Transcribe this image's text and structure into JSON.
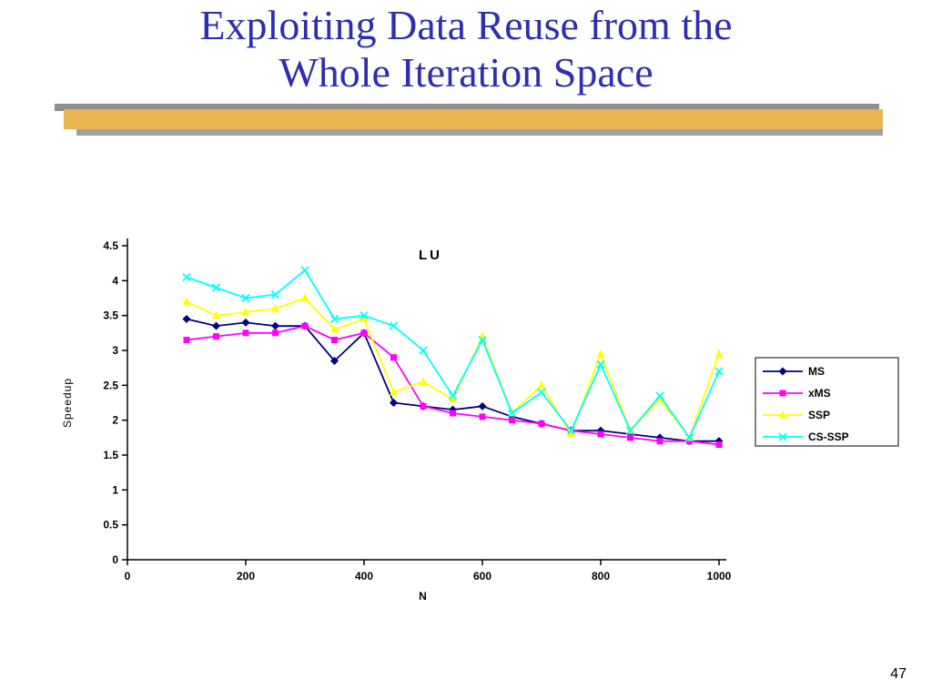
{
  "slide": {
    "title_line1": "Exploiting Data Reuse from the",
    "title_line2": "Whole Iteration Space",
    "page_number": "47",
    "title_color": "#2E2EB0",
    "divider_gold": "#E8B550",
    "divider_gray": "#8F8F8F"
  },
  "chart_data": {
    "type": "line",
    "title": "LU",
    "xlabel": "N",
    "ylabel": "Speedup",
    "xlim": [
      0,
      1000
    ],
    "ylim": [
      0,
      4.5
    ],
    "x_ticks": [
      0,
      200,
      400,
      600,
      800,
      1000
    ],
    "y_ticks": [
      0,
      0.5,
      1,
      1.5,
      2,
      2.5,
      3,
      3.5,
      4,
      4.5
    ],
    "grid": false,
    "legend_position": "right",
    "x": [
      100,
      150,
      200,
      250,
      300,
      350,
      400,
      450,
      500,
      550,
      600,
      650,
      700,
      750,
      800,
      850,
      900,
      950,
      1000
    ],
    "series": [
      {
        "name": "MS",
        "color": "#000080",
        "marker": "diamond",
        "values": [
          3.45,
          3.35,
          3.4,
          3.35,
          3.35,
          2.85,
          3.25,
          2.25,
          2.2,
          2.15,
          2.2,
          2.05,
          1.95,
          1.85,
          1.85,
          1.8,
          1.75,
          1.7,
          1.7
        ]
      },
      {
        "name": "xMS",
        "color": "#FF00FF",
        "marker": "square",
        "values": [
          3.15,
          3.2,
          3.25,
          3.25,
          3.35,
          3.15,
          3.25,
          2.9,
          2.2,
          2.1,
          2.05,
          2.0,
          1.95,
          1.85,
          1.8,
          1.75,
          1.7,
          1.7,
          1.65
        ]
      },
      {
        "name": "SSP",
        "color": "#FFFF00",
        "marker": "triangle",
        "values": [
          3.7,
          3.5,
          3.55,
          3.6,
          3.75,
          3.3,
          3.45,
          2.4,
          2.55,
          2.3,
          3.2,
          2.1,
          2.5,
          1.8,
          2.95,
          1.85,
          2.3,
          1.75,
          2.95
        ]
      },
      {
        "name": "CS-SSP",
        "color": "#00FFFF",
        "marker": "x",
        "values": [
          4.05,
          3.9,
          3.75,
          3.8,
          4.15,
          3.45,
          3.5,
          3.35,
          3.0,
          2.35,
          3.15,
          2.1,
          2.4,
          1.85,
          2.8,
          1.85,
          2.35,
          1.75,
          2.7
        ]
      }
    ]
  }
}
